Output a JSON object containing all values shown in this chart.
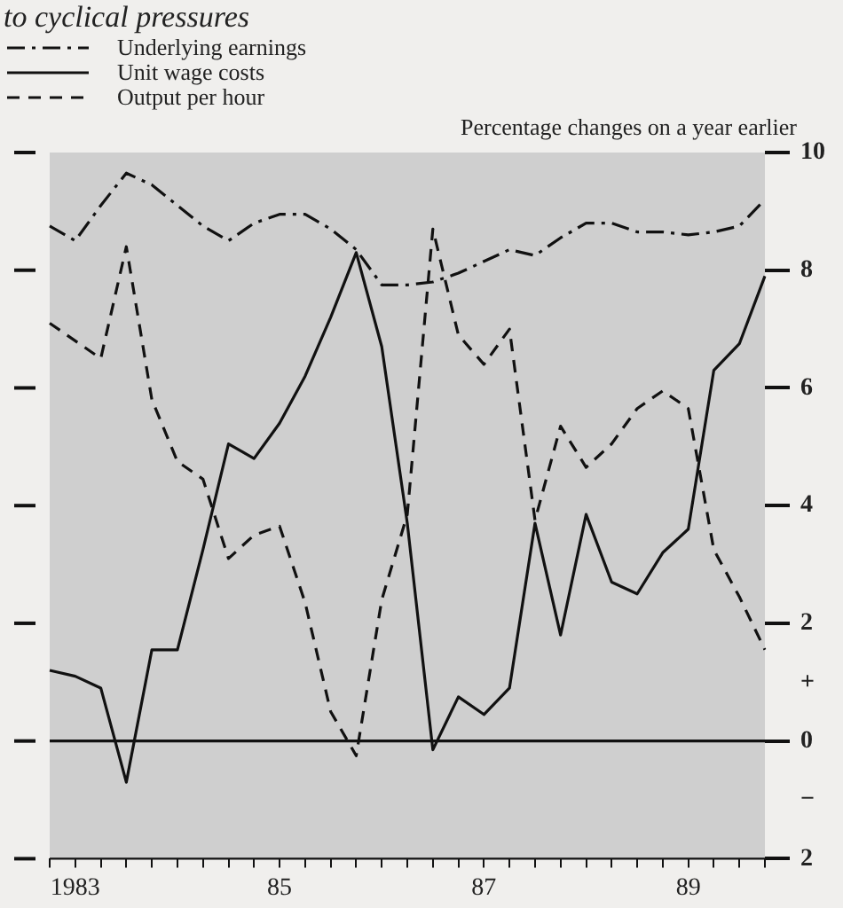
{
  "chart_data": {
    "type": "line",
    "title": "to cyclical pressures",
    "ylabel": "Percentage changes on a year earlier",
    "categories": [
      null,
      "1983",
      null,
      null,
      null,
      null,
      null,
      null,
      null,
      "85",
      null,
      null,
      null,
      null,
      null,
      null,
      null,
      "87",
      null,
      null,
      null,
      null,
      null,
      null,
      null,
      "89",
      null,
      null,
      null
    ],
    "series": [
      {
        "name": "Underlying earnings",
        "color": "#111111",
        "line_style": "dashdot",
        "values": [
          8.75,
          8.5,
          9.1,
          9.65,
          9.45,
          9.1,
          8.75,
          8.5,
          8.8,
          8.95,
          8.95,
          8.7,
          8.35,
          7.75,
          7.75,
          7.8,
          7.95,
          8.15,
          8.35,
          8.25,
          8.55,
          8.8,
          8.8,
          8.65,
          8.65,
          8.6,
          8.65,
          8.75,
          9.2
        ]
      },
      {
        "name": "Unit wage costs",
        "color": "#111111",
        "line_style": "solid",
        "values": [
          1.2,
          1.1,
          0.9,
          -0.7,
          1.55,
          1.55,
          3.25,
          5.05,
          4.8,
          5.4,
          6.2,
          7.2,
          8.3,
          6.7,
          3.7,
          -0.15,
          0.75,
          0.45,
          0.9,
          3.7,
          1.8,
          3.85,
          2.7,
          2.5,
          3.2,
          3.6,
          6.3,
          6.75,
          7.9
        ]
      },
      {
        "name": "Output per hour",
        "color": "#111111",
        "line_style": "dashed",
        "values": [
          7.1,
          6.8,
          6.5,
          8.4,
          5.8,
          4.75,
          4.45,
          3.1,
          3.5,
          3.65,
          2.35,
          0.5,
          -0.25,
          2.4,
          3.85,
          8.7,
          6.9,
          6.4,
          7.0,
          3.75,
          5.35,
          4.65,
          5.05,
          5.65,
          5.95,
          5.65,
          3.25,
          2.45,
          1.55
        ]
      }
    ],
    "ylim": [
      -2,
      10
    ],
    "yticks": [
      10,
      8,
      6,
      4,
      2,
      {
        "value": 1,
        "label": "+"
      },
      0,
      {
        "value": -1,
        "label": "−"
      },
      {
        "value": -2,
        "label": "2"
      }
    ],
    "ref_lines": [
      {
        "axis": "y",
        "value": 0,
        "color": "#111111",
        "line_style": "solid"
      }
    ],
    "grid": false,
    "legend": "top left"
  }
}
